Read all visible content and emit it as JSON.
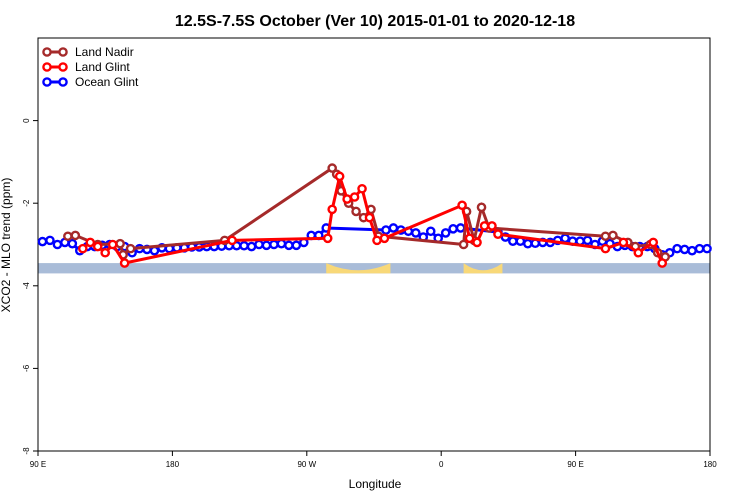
{
  "chart_data": {
    "type": "line",
    "title": "12.5S-7.5S October (Ver 10)   2015-01-01 to 2020-12-18",
    "xlabel": "Longitude",
    "ylabel": "XCO2 - MLO trend (ppm)",
    "x_ticks": [
      {
        "value": 0,
        "label": "90 E"
      },
      {
        "value": 90,
        "label": "180"
      },
      {
        "value": 180,
        "label": "90 W"
      },
      {
        "value": 270,
        "label": "0"
      },
      {
        "value": 360,
        "label": "90 E"
      },
      {
        "value": 450,
        "label": "180"
      }
    ],
    "y_ticks": [
      0,
      -2,
      -4,
      -6,
      -8
    ],
    "xlim": [
      0,
      450
    ],
    "ylim": [
      -8,
      2
    ],
    "grid": false,
    "legend_position": "top-left",
    "colors": {
      "land_nadir": "#a52a2a",
      "land_glint": "#ff0000",
      "ocean_glint": "#0000ff",
      "ocean_band": "#a9bcd8",
      "land_band": "#f8d878"
    },
    "series": [
      {
        "name": "Land Nadir",
        "color": "#a52a2a",
        "points": [
          [
            20,
            -2.8
          ],
          [
            25,
            -2.78
          ],
          [
            40,
            -3
          ],
          [
            55,
            -2.98
          ],
          [
            57,
            -3.25
          ],
          [
            62,
            -3.1
          ],
          [
            125,
            -2.9
          ],
          [
            197,
            -1.15
          ],
          [
            200,
            -1.3
          ],
          [
            203,
            -1.7
          ],
          [
            208,
            -2
          ],
          [
            213,
            -2.2
          ],
          [
            218,
            -2.35
          ],
          [
            223,
            -2.15
          ],
          [
            228,
            -2.8
          ],
          [
            285,
            -3
          ],
          [
            287,
            -2.2
          ],
          [
            292,
            -2.9
          ],
          [
            297,
            -2.1
          ],
          [
            302,
            -2.6
          ],
          [
            380,
            -2.8
          ],
          [
            385,
            -2.78
          ],
          [
            395,
            -2.95
          ],
          [
            400,
            -3.05
          ],
          [
            410,
            -3
          ],
          [
            415,
            -3.2
          ],
          [
            420,
            -3.3
          ]
        ]
      },
      {
        "name": "Land Glint",
        "color": "#ff0000",
        "points": [
          [
            30,
            -3.1
          ],
          [
            35,
            -2.95
          ],
          [
            40,
            -3.05
          ],
          [
            45,
            -3.2
          ],
          [
            50,
            -3
          ],
          [
            58,
            -3.45
          ],
          [
            130,
            -2.9
          ],
          [
            194,
            -2.85
          ],
          [
            197,
            -2.15
          ],
          [
            202,
            -1.35
          ],
          [
            207,
            -1.9
          ],
          [
            212,
            -1.85
          ],
          [
            217,
            -1.65
          ],
          [
            222,
            -2.35
          ],
          [
            227,
            -2.9
          ],
          [
            232,
            -2.85
          ],
          [
            284,
            -2.05
          ],
          [
            289,
            -2.85
          ],
          [
            294,
            -2.95
          ],
          [
            299,
            -2.55
          ],
          [
            304,
            -2.55
          ],
          [
            308,
            -2.75
          ],
          [
            380,
            -3.1
          ],
          [
            392,
            -2.95
          ],
          [
            402,
            -3.2
          ],
          [
            412,
            -2.95
          ],
          [
            418,
            -3.45
          ]
        ]
      },
      {
        "name": "Ocean Glint",
        "color": "#0000ff",
        "points": [
          [
            3,
            -2.93
          ],
          [
            8,
            -2.9
          ],
          [
            13,
            -3
          ],
          [
            18,
            -2.95
          ],
          [
            23,
            -2.98
          ],
          [
            28,
            -3.15
          ],
          [
            33,
            -3.05
          ],
          [
            38,
            -3.05
          ],
          [
            43,
            -3.02
          ],
          [
            48,
            -3
          ],
          [
            53,
            -3.05
          ],
          [
            58,
            -3.05
          ],
          [
            63,
            -3.2
          ],
          [
            68,
            -3.1
          ],
          [
            73,
            -3.12
          ],
          [
            78,
            -3.15
          ],
          [
            83,
            -3.08
          ],
          [
            88,
            -3.1
          ],
          [
            93,
            -3.08
          ],
          [
            98,
            -3.08
          ],
          [
            103,
            -3.06
          ],
          [
            108,
            -3.06
          ],
          [
            113,
            -3.05
          ],
          [
            118,
            -3.05
          ],
          [
            123,
            -3.04
          ],
          [
            128,
            -3.03
          ],
          [
            133,
            -3.03
          ],
          [
            138,
            -3.03
          ],
          [
            143,
            -3.05
          ],
          [
            148,
            -3
          ],
          [
            153,
            -3.02
          ],
          [
            158,
            -3
          ],
          [
            163,
            -2.98
          ],
          [
            168,
            -3.02
          ],
          [
            173,
            -3.02
          ],
          [
            178,
            -2.95
          ],
          [
            183,
            -2.78
          ],
          [
            188,
            -2.78
          ],
          [
            193,
            -2.6
          ],
          [
            233,
            -2.65
          ],
          [
            238,
            -2.6
          ],
          [
            243,
            -2.65
          ],
          [
            248,
            -2.68
          ],
          [
            253,
            -2.72
          ],
          [
            258,
            -2.82
          ],
          [
            263,
            -2.68
          ],
          [
            268,
            -2.85
          ],
          [
            273,
            -2.72
          ],
          [
            278,
            -2.62
          ],
          [
            283,
            -2.6
          ],
          [
            308,
            -2.7
          ],
          [
            313,
            -2.82
          ],
          [
            318,
            -2.92
          ],
          [
            323,
            -2.92
          ],
          [
            328,
            -2.98
          ],
          [
            333,
            -2.97
          ],
          [
            338,
            -2.95
          ],
          [
            343,
            -2.95
          ],
          [
            348,
            -2.9
          ],
          [
            353,
            -2.85
          ],
          [
            358,
            -2.92
          ],
          [
            363,
            -2.92
          ],
          [
            368,
            -2.9
          ],
          [
            373,
            -3
          ],
          [
            378,
            -2.92
          ],
          [
            383,
            -2.98
          ],
          [
            388,
            -3.05
          ],
          [
            393,
            -3.02
          ],
          [
            398,
            -3.05
          ],
          [
            403,
            -3.05
          ],
          [
            408,
            -3.05
          ],
          [
            413,
            -3.1
          ],
          [
            418,
            -3.25
          ],
          [
            423,
            -3.2
          ],
          [
            428,
            -3.1
          ],
          [
            433,
            -3.12
          ],
          [
            438,
            -3.15
          ],
          [
            443,
            -3.1
          ],
          [
            448,
            -3.1
          ]
        ]
      }
    ],
    "surface_band": {
      "y_range": [
        -3.45,
        -3.7
      ],
      "land_segments": [
        [
          193,
          236
        ],
        [
          285,
          311
        ]
      ]
    }
  }
}
